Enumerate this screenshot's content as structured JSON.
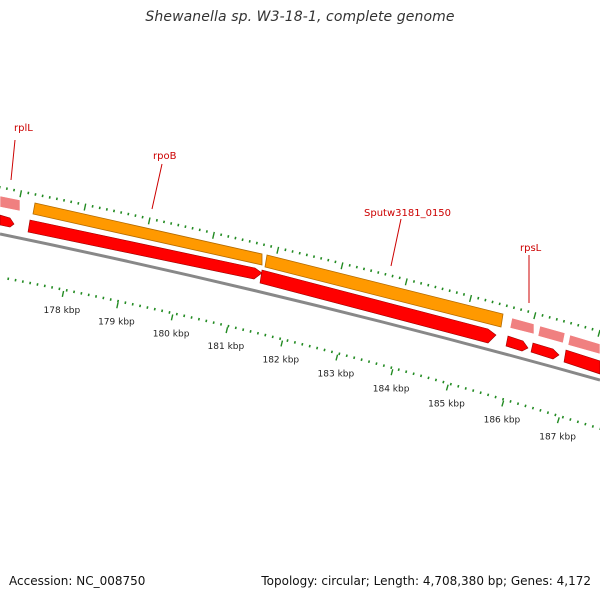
{
  "title": "Shewanella sp. W3-18-1, complete genome",
  "footer": {
    "accession": "Accession: NC_008750",
    "summary": "Topology: circular; Length: 4,708,380 bp; Genes: 4,172"
  },
  "colors": {
    "forward_cds": "#ff0000",
    "forward_cds_light": "#f08080",
    "rrna_orange": "#ff9900",
    "backbone": "#888888",
    "gene_label": "#cc0000",
    "tick": "#228b22"
  },
  "ticks": [
    {
      "label": "178 kbp"
    },
    {
      "label": "179 kbp"
    },
    {
      "label": "180 kbp"
    },
    {
      "label": "181 kbp"
    },
    {
      "label": "182 kbp"
    },
    {
      "label": "183 kbp"
    },
    {
      "label": "184 kbp"
    },
    {
      "label": "185 kbp"
    },
    {
      "label": "186 kbp"
    },
    {
      "label": "187 kbp"
    }
  ],
  "genes": [
    {
      "label": "rplL"
    },
    {
      "label": "rpoB"
    },
    {
      "label": "Sputw3181_0150"
    },
    {
      "label": "rpsL"
    }
  ]
}
